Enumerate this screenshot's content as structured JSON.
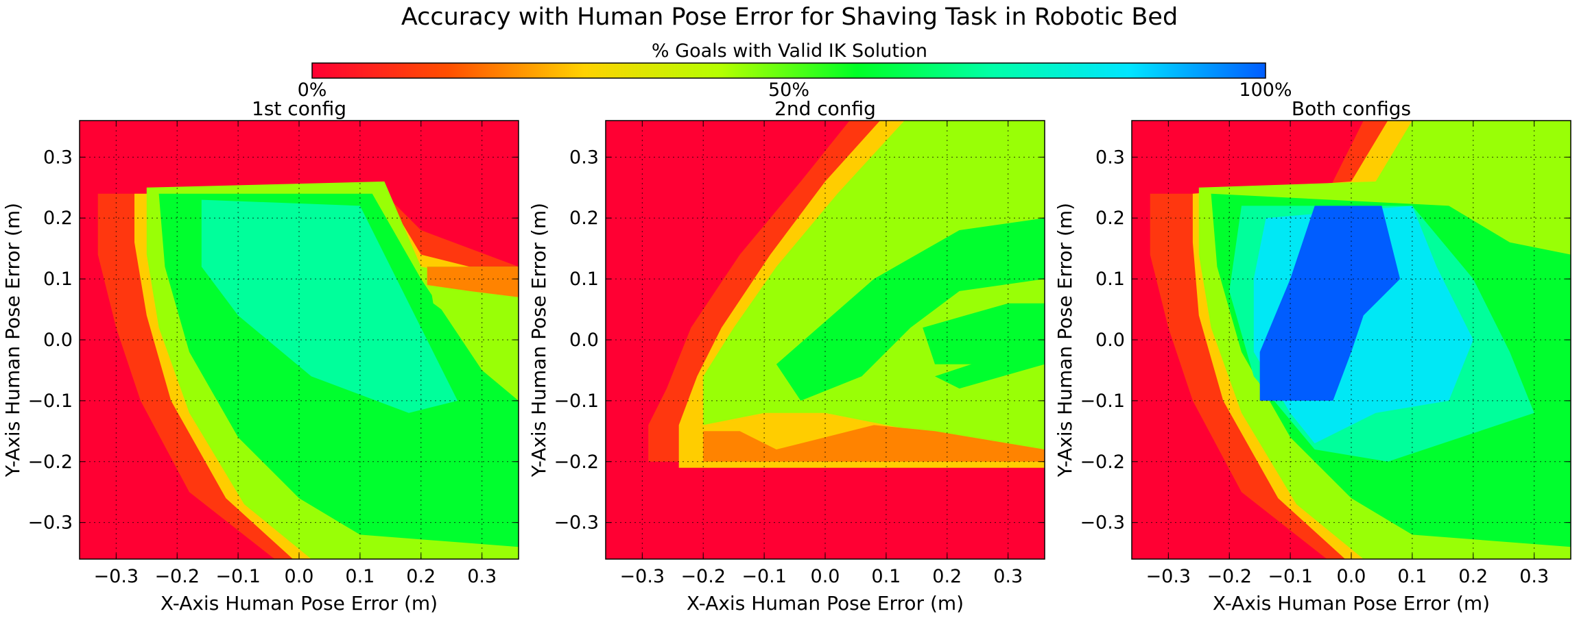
{
  "title": "Accuracy with Human Pose Error for Shaving Task in Robotic Bed",
  "colorbar": {
    "label": "% Goals with Valid IK Solution",
    "tick_labels": [
      "0%",
      "50%",
      "100%"
    ],
    "colormap": "gist_rainbow_r",
    "stops": [
      "#ff0033",
      "#ff4f00",
      "#ffd200",
      "#b4ff00",
      "#00ff26",
      "#00ffa8",
      "#00e5ff",
      "#005dff"
    ]
  },
  "chart_data": [
    {
      "type": "heatmap",
      "title": "1st config",
      "xlabel": "X-Axis Human Pose Error (m)",
      "ylabel": "Y-Axis Human Pose Error (m)",
      "xlim": [
        -0.36,
        0.36
      ],
      "ylim": [
        -0.36,
        0.36
      ],
      "xticks": [
        -0.3,
        -0.2,
        -0.1,
        0.0,
        0.1,
        0.2,
        0.3
      ],
      "yticks": [
        -0.3,
        -0.2,
        -0.1,
        0.0,
        0.1,
        0.2,
        0.3
      ],
      "xtick_labels": [
        "−0.3",
        "−0.2",
        "−0.1",
        "0.0",
        "0.1",
        "0.2",
        "0.3"
      ],
      "ytick_labels": [
        "−0.3",
        "−0.2",
        "−0.1",
        "0.0",
        "0.1",
        "0.2",
        "0.3"
      ],
      "grid": true,
      "value_range": [
        0,
        100
      ],
      "background_value": 0,
      "regions": [
        {
          "value": 10,
          "points": [
            [
              -0.33,
              0.24
            ],
            [
              0.14,
              0.24
            ],
            [
              0.2,
              0.18
            ],
            [
              0.36,
              0.12
            ],
            [
              0.36,
              -0.36
            ],
            [
              -0.04,
              -0.36
            ],
            [
              -0.18,
              -0.25
            ],
            [
              -0.26,
              -0.1
            ],
            [
              -0.3,
              0.02
            ],
            [
              -0.33,
              0.14
            ]
          ]
        },
        {
          "value": 28,
          "points": [
            [
              -0.27,
              0.24
            ],
            [
              0.14,
              0.24
            ],
            [
              0.2,
              0.14
            ],
            [
              0.36,
              0.1
            ],
            [
              0.36,
              -0.36
            ],
            [
              -0.01,
              -0.36
            ],
            [
              -0.12,
              -0.26
            ],
            [
              -0.21,
              -0.1
            ],
            [
              -0.25,
              0.04
            ],
            [
              -0.27,
              0.16
            ]
          ]
        },
        {
          "value": 45,
          "points": [
            [
              -0.25,
              0.25
            ],
            [
              0.14,
              0.26
            ],
            [
              0.2,
              0.12
            ],
            [
              0.36,
              0.09
            ],
            [
              0.36,
              -0.36
            ],
            [
              0.02,
              -0.36
            ],
            [
              -0.09,
              -0.27
            ],
            [
              -0.18,
              -0.12
            ],
            [
              -0.23,
              0.02
            ],
            [
              -0.25,
              0.14
            ]
          ]
        },
        {
          "value": 58,
          "points": [
            [
              -0.23,
              0.24
            ],
            [
              0.12,
              0.24
            ],
            [
              0.2,
              0.1
            ],
            [
              0.3,
              -0.05
            ],
            [
              0.36,
              -0.1
            ],
            [
              0.36,
              -0.34
            ],
            [
              0.1,
              -0.32
            ],
            [
              0.0,
              -0.26
            ],
            [
              -0.1,
              -0.16
            ],
            [
              -0.18,
              -0.02
            ],
            [
              -0.22,
              0.12
            ]
          ]
        },
        {
          "value": 70,
          "points": [
            [
              -0.16,
              0.23
            ],
            [
              0.1,
              0.22
            ],
            [
              0.18,
              0.06
            ],
            [
              0.26,
              -0.1
            ],
            [
              0.18,
              -0.12
            ],
            [
              0.02,
              -0.06
            ],
            [
              -0.1,
              0.04
            ],
            [
              -0.16,
              0.12
            ]
          ]
        },
        {
          "value": 45,
          "points": [
            [
              0.21,
              0.12
            ],
            [
              0.36,
              0.12
            ],
            [
              0.36,
              0.02
            ],
            [
              0.3,
              0.0
            ],
            [
              0.22,
              0.06
            ]
          ]
        },
        {
          "value": 20,
          "points": [
            [
              0.21,
              0.12
            ],
            [
              0.36,
              0.12
            ],
            [
              0.36,
              0.07
            ],
            [
              0.28,
              0.08
            ],
            [
              0.21,
              0.09
            ]
          ]
        }
      ]
    },
    {
      "type": "heatmap",
      "title": "2nd config",
      "xlabel": "X-Axis Human Pose Error (m)",
      "ylabel": "Y-Axis Human Pose Error (m)",
      "xlim": [
        -0.36,
        0.36
      ],
      "ylim": [
        -0.36,
        0.36
      ],
      "xticks": [
        -0.3,
        -0.2,
        -0.1,
        0.0,
        0.1,
        0.2,
        0.3
      ],
      "yticks": [
        -0.3,
        -0.2,
        -0.1,
        0.0,
        0.1,
        0.2,
        0.3
      ],
      "xtick_labels": [
        "−0.3",
        "−0.2",
        "−0.1",
        "0.0",
        "0.1",
        "0.2",
        "0.3"
      ],
      "ytick_labels": [
        "−0.3",
        "−0.2",
        "−0.1",
        "0.0",
        "0.1",
        "0.2",
        "0.3"
      ],
      "grid": true,
      "value_range": [
        0,
        100
      ],
      "background_value": 0,
      "regions": [
        {
          "value": 10,
          "points": [
            [
              0.04,
              0.36
            ],
            [
              0.36,
              0.36
            ],
            [
              0.36,
              -0.2
            ],
            [
              -0.29,
              -0.2
            ],
            [
              -0.29,
              -0.14
            ],
            [
              -0.26,
              -0.08
            ],
            [
              -0.22,
              0.02
            ],
            [
              -0.14,
              0.14
            ],
            [
              -0.04,
              0.26
            ]
          ]
        },
        {
          "value": 28,
          "points": [
            [
              0.09,
              0.36
            ],
            [
              0.36,
              0.36
            ],
            [
              0.36,
              -0.21
            ],
            [
              -0.24,
              -0.21
            ],
            [
              -0.24,
              -0.14
            ],
            [
              -0.21,
              -0.06
            ],
            [
              -0.17,
              0.02
            ],
            [
              -0.09,
              0.14
            ],
            [
              0.0,
              0.26
            ]
          ]
        },
        {
          "value": 45,
          "points": [
            [
              0.13,
              0.36
            ],
            [
              0.36,
              0.36
            ],
            [
              0.36,
              -0.2
            ],
            [
              0.2,
              -0.16
            ],
            [
              0.1,
              -0.14
            ],
            [
              0.0,
              -0.12
            ],
            [
              -0.1,
              -0.12
            ],
            [
              -0.2,
              -0.14
            ],
            [
              -0.2,
              -0.06
            ],
            [
              -0.15,
              0.02
            ],
            [
              -0.08,
              0.12
            ],
            [
              0.02,
              0.24
            ]
          ]
        },
        {
          "value": 58,
          "points": [
            [
              0.08,
              0.1
            ],
            [
              0.22,
              0.18
            ],
            [
              0.36,
              0.2
            ],
            [
              0.36,
              0.1
            ],
            [
              0.22,
              0.08
            ],
            [
              0.14,
              0.02
            ],
            [
              0.06,
              -0.06
            ],
            [
              -0.04,
              -0.1
            ],
            [
              -0.08,
              -0.04
            ]
          ]
        },
        {
          "value": 58,
          "points": [
            [
              0.16,
              0.02
            ],
            [
              0.3,
              0.06
            ],
            [
              0.36,
              0.06
            ],
            [
              0.36,
              0.0
            ],
            [
              0.26,
              -0.04
            ],
            [
              0.18,
              -0.04
            ]
          ]
        },
        {
          "value": 58,
          "points": [
            [
              0.18,
              -0.06
            ],
            [
              0.36,
              0.0
            ],
            [
              0.36,
              -0.04
            ],
            [
              0.22,
              -0.08
            ]
          ]
        },
        {
          "value": 20,
          "points": [
            [
              -0.2,
              -0.2
            ],
            [
              0.36,
              -0.2
            ],
            [
              0.36,
              -0.18
            ],
            [
              0.18,
              -0.15
            ],
            [
              0.08,
              -0.14
            ],
            [
              0.0,
              -0.16
            ],
            [
              -0.08,
              -0.18
            ],
            [
              -0.14,
              -0.15
            ],
            [
              -0.2,
              -0.15
            ]
          ]
        }
      ]
    },
    {
      "type": "heatmap",
      "title": "Both configs",
      "xlabel": "X-Axis Human Pose Error (m)",
      "ylabel": "Y-Axis Human Pose Error (m)",
      "xlim": [
        -0.36,
        0.36
      ],
      "ylim": [
        -0.36,
        0.36
      ],
      "xticks": [
        -0.3,
        -0.2,
        -0.1,
        0.0,
        0.1,
        0.2,
        0.3
      ],
      "yticks": [
        -0.3,
        -0.2,
        -0.1,
        0.0,
        0.1,
        0.2,
        0.3
      ],
      "xtick_labels": [
        "−0.3",
        "−0.2",
        "−0.1",
        "0.0",
        "0.1",
        "0.2",
        "0.3"
      ],
      "ytick_labels": [
        "−0.3",
        "−0.2",
        "−0.1",
        "0.0",
        "0.1",
        "0.2",
        "0.3"
      ],
      "grid": true,
      "value_range": [
        0,
        100
      ],
      "background_value": 0,
      "regions": [
        {
          "value": 10,
          "points": [
            [
              -0.33,
              0.24
            ],
            [
              -0.04,
              0.24
            ],
            [
              0.02,
              0.36
            ],
            [
              0.36,
              0.36
            ],
            [
              0.36,
              -0.36
            ],
            [
              -0.04,
              -0.36
            ],
            [
              -0.18,
              -0.25
            ],
            [
              -0.26,
              -0.1
            ],
            [
              -0.3,
              0.02
            ],
            [
              -0.33,
              0.14
            ]
          ]
        },
        {
          "value": 28,
          "points": [
            [
              -0.26,
              0.24
            ],
            [
              0.0,
              0.26
            ],
            [
              0.06,
              0.36
            ],
            [
              0.36,
              0.36
            ],
            [
              0.36,
              -0.36
            ],
            [
              -0.01,
              -0.36
            ],
            [
              -0.12,
              -0.26
            ],
            [
              -0.21,
              -0.1
            ],
            [
              -0.25,
              0.04
            ],
            [
              -0.26,
              0.16
            ]
          ]
        },
        {
          "value": 45,
          "points": [
            [
              -0.25,
              0.25
            ],
            [
              0.04,
              0.26
            ],
            [
              0.1,
              0.36
            ],
            [
              0.36,
              0.36
            ],
            [
              0.36,
              -0.36
            ],
            [
              0.02,
              -0.36
            ],
            [
              -0.09,
              -0.27
            ],
            [
              -0.18,
              -0.12
            ],
            [
              -0.23,
              0.02
            ],
            [
              -0.25,
              0.14
            ]
          ]
        },
        {
          "value": 58,
          "points": [
            [
              -0.23,
              0.24
            ],
            [
              0.16,
              0.22
            ],
            [
              0.26,
              0.16
            ],
            [
              0.36,
              0.14
            ],
            [
              0.36,
              -0.34
            ],
            [
              0.1,
              -0.32
            ],
            [
              0.0,
              -0.26
            ],
            [
              -0.1,
              -0.16
            ],
            [
              -0.18,
              -0.02
            ],
            [
              -0.22,
              0.12
            ]
          ]
        },
        {
          "value": 70,
          "points": [
            [
              -0.18,
              0.22
            ],
            [
              0.1,
              0.22
            ],
            [
              0.2,
              0.1
            ],
            [
              0.26,
              -0.02
            ],
            [
              0.3,
              -0.12
            ],
            [
              0.18,
              -0.16
            ],
            [
              0.06,
              -0.2
            ],
            [
              -0.06,
              -0.18
            ],
            [
              -0.16,
              -0.06
            ],
            [
              -0.2,
              0.08
            ]
          ]
        },
        {
          "value": 84,
          "points": [
            [
              -0.14,
              0.2
            ],
            [
              0.1,
              0.22
            ],
            [
              0.14,
              0.12
            ],
            [
              0.2,
              0.0
            ],
            [
              0.16,
              -0.1
            ],
            [
              0.04,
              -0.12
            ],
            [
              -0.06,
              -0.17
            ],
            [
              -0.1,
              -0.12
            ],
            [
              -0.16,
              -0.02
            ],
            [
              -0.16,
              0.1
            ]
          ]
        },
        {
          "value": 100,
          "points": [
            [
              -0.06,
              0.22
            ],
            [
              0.05,
              0.22
            ],
            [
              0.08,
              0.1
            ],
            [
              0.02,
              0.04
            ],
            [
              0.0,
              -0.02
            ],
            [
              -0.03,
              -0.1
            ],
            [
              -0.15,
              -0.1
            ],
            [
              -0.15,
              -0.02
            ],
            [
              -0.1,
              0.1
            ]
          ]
        }
      ]
    }
  ]
}
